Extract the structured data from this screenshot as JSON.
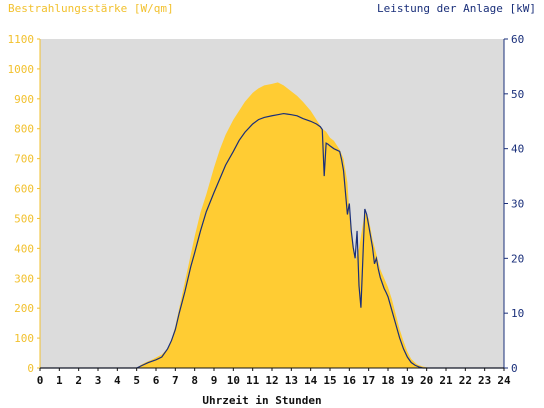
{
  "chart_data": {
    "type": "area",
    "title_left": "Bestrahlungsstärke [W/qm]",
    "title_right": "Leistung der Anlage [kW]",
    "xlabel": "Uhrzeit in Stunden",
    "xlim": [
      0,
      24
    ],
    "ylim_left": [
      0,
      1100
    ],
    "ylim_right": [
      0,
      60
    ],
    "x_ticks": [
      0,
      1,
      2,
      3,
      4,
      5,
      6,
      7,
      8,
      9,
      10,
      11,
      12,
      13,
      14,
      15,
      16,
      17,
      18,
      19,
      20,
      21,
      22,
      23,
      24
    ],
    "y_left_ticks": [
      0,
      100,
      200,
      300,
      400,
      500,
      600,
      700,
      800,
      900,
      1000,
      1100
    ],
    "y_right_ticks": [
      0,
      10,
      20,
      30,
      40,
      50,
      60
    ],
    "colors": {
      "irradiance_fill": "#ffcc33",
      "power_line": "#1a2f7a",
      "plot_background": "#dcdcdc",
      "left_axis": "#f2c12e",
      "right_axis": "#1a2f7a"
    },
    "series": [
      {
        "axis": "left",
        "style": "area",
        "x": [
          0,
          5.0,
          5.2,
          5.5,
          5.8,
          6.0,
          6.3,
          6.6,
          6.8,
          7.0,
          7.2,
          7.5,
          7.8,
          8.0,
          8.3,
          8.6,
          9.0,
          9.3,
          9.6,
          10.0,
          10.3,
          10.6,
          11.0,
          11.3,
          11.6,
          12.0,
          12.3,
          12.6,
          12.8,
          13.0,
          13.3,
          13.6,
          14.0,
          14.3,
          14.6,
          14.8,
          14.9,
          15.0,
          15.2,
          15.5,
          15.7,
          15.9,
          16.0,
          16.1,
          16.2,
          16.3,
          16.4,
          16.5,
          16.6,
          16.8,
          17.0,
          17.2,
          17.4,
          17.6,
          17.8,
          18.0,
          18.2,
          18.4,
          18.6,
          18.8,
          19.0,
          19.2,
          19.5,
          19.8,
          20.0,
          20.2,
          24
        ],
        "y": [
          0,
          0,
          10,
          20,
          28,
          35,
          45,
          65,
          95,
          140,
          200,
          290,
          380,
          440,
          520,
          580,
          670,
          730,
          780,
          830,
          860,
          890,
          920,
          935,
          945,
          950,
          955,
          945,
          935,
          925,
          910,
          890,
          860,
          830,
          800,
          790,
          780,
          770,
          760,
          730,
          700,
          620,
          520,
          460,
          400,
          360,
          380,
          400,
          440,
          520,
          500,
          430,
          380,
          330,
          300,
          270,
          230,
          180,
          130,
          90,
          55,
          30,
          12,
          5,
          2,
          0,
          0
        ]
      },
      {
        "axis": "right",
        "style": "line",
        "x": [
          0,
          5.0,
          5.3,
          5.6,
          6.0,
          6.3,
          6.6,
          6.8,
          7.0,
          7.2,
          7.5,
          7.8,
          8.0,
          8.3,
          8.6,
          9.0,
          9.3,
          9.6,
          10.0,
          10.3,
          10.6,
          11.0,
          11.3,
          11.6,
          12.0,
          12.3,
          12.6,
          12.8,
          13.0,
          13.3,
          13.6,
          14.0,
          14.3,
          14.5,
          14.6,
          14.7,
          14.8,
          14.9,
          15.0,
          15.2,
          15.5,
          15.6,
          15.7,
          15.8,
          15.9,
          16.0,
          16.1,
          16.2,
          16.3,
          16.4,
          16.5,
          16.6,
          16.7,
          16.8,
          16.9,
          17.0,
          17.1,
          17.2,
          17.3,
          17.4,
          17.5,
          17.6,
          17.7,
          17.8,
          17.9,
          18.0,
          18.2,
          18.4,
          18.6,
          18.8,
          19.0,
          19.2,
          19.4,
          19.6,
          19.8,
          20.0,
          20.2,
          24
        ],
        "y": [
          0,
          0,
          0.5,
          1.0,
          1.5,
          2.0,
          3.5,
          5.0,
          7.0,
          10.0,
          14.0,
          18.5,
          21.0,
          25.0,
          28.5,
          32.0,
          34.5,
          37.0,
          39.5,
          41.5,
          43.0,
          44.5,
          45.3,
          45.7,
          46.0,
          46.2,
          46.4,
          46.3,
          46.2,
          46.0,
          45.5,
          45.0,
          44.5,
          44.0,
          43.5,
          35.0,
          41.0,
          40.8,
          40.5,
          40.0,
          39.5,
          38.0,
          36.0,
          32.0,
          28.0,
          30.0,
          25.0,
          22.0,
          20.0,
          25.0,
          15.0,
          11.0,
          20.0,
          29.0,
          28.0,
          26.0,
          24.0,
          22.0,
          19.0,
          20.0,
          18.0,
          16.5,
          15.5,
          14.5,
          13.8,
          13.0,
          10.5,
          8.0,
          5.5,
          3.5,
          2.0,
          1.0,
          0.5,
          0.2,
          0,
          0,
          0,
          0
        ]
      }
    ]
  }
}
